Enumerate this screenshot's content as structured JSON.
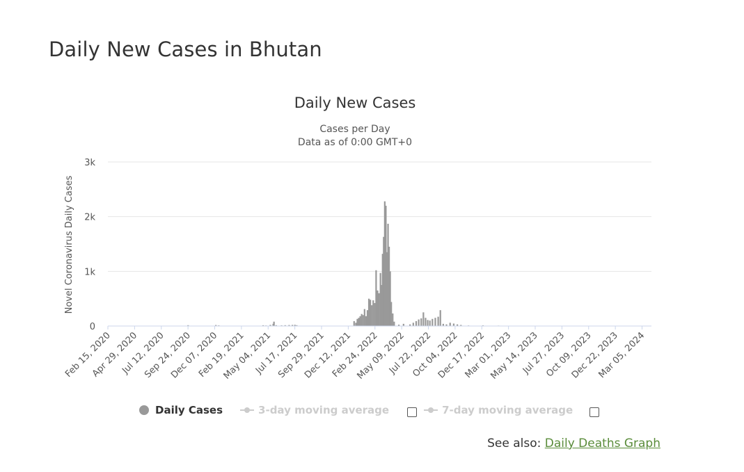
{
  "page": {
    "title": "Daily New Cases in Bhutan",
    "see_also_prefix": "See also: ",
    "see_also_link": "Daily Deaths Graph"
  },
  "colors": {
    "bar": "#999999",
    "grid": "#e6e6e6",
    "axis": "#ccd6eb",
    "link": "#5a8c3a",
    "legend_inactive": "#cccccc"
  },
  "chart_data": {
    "type": "bar",
    "title": "Daily New Cases",
    "subtitle_lines": [
      "Cases per Day",
      "Data as of 0:00 GMT+0"
    ],
    "ylabel": "Novel Coronavirus Daily Cases",
    "ylim": [
      0,
      3000
    ],
    "y_ticks": [
      {
        "value": 0,
        "label": "0"
      },
      {
        "value": 1000,
        "label": "1k"
      },
      {
        "value": 2000,
        "label": "2k"
      },
      {
        "value": 3000,
        "label": "3k"
      }
    ],
    "x_range": [
      "2020-02-15",
      "2024-03-31"
    ],
    "x_ticks": [
      "Feb 15, 2020",
      "Apr 29, 2020",
      "Jul 12, 2020",
      "Sep 24, 2020",
      "Dec 07, 2020",
      "Feb 19, 2021",
      "May 04, 2021",
      "Jul 17, 2021",
      "Sep 29, 2021",
      "Dec 12, 2021",
      "Feb 24, 2022",
      "May 09, 2022",
      "Jul 22, 2022",
      "Oct 04, 2022",
      "Dec 17, 2022",
      "Mar 01, 2023",
      "May 14, 2023",
      "Jul 27, 2023",
      "Oct 09, 2023",
      "Dec 22, 2023",
      "Mar 05, 2024"
    ],
    "series": [
      {
        "name": "Daily Cases",
        "points": [
          [
            "2020-09-24",
            15
          ],
          [
            "2020-12-10",
            18
          ],
          [
            "2020-12-18",
            12
          ],
          [
            "2021-04-20",
            14
          ],
          [
            "2021-04-28",
            10
          ],
          [
            "2021-05-10",
            20
          ],
          [
            "2021-05-18",
            40
          ],
          [
            "2021-05-20",
            80
          ],
          [
            "2021-05-26",
            15
          ],
          [
            "2021-06-10",
            12
          ],
          [
            "2021-06-20",
            15
          ],
          [
            "2021-07-01",
            18
          ],
          [
            "2021-07-10",
            20
          ],
          [
            "2021-07-17",
            22
          ],
          [
            "2021-07-22",
            15
          ],
          [
            "2021-12-28",
            90
          ],
          [
            "2022-01-02",
            60
          ],
          [
            "2022-01-06",
            130
          ],
          [
            "2022-01-10",
            150
          ],
          [
            "2022-01-14",
            180
          ],
          [
            "2022-01-18",
            220
          ],
          [
            "2022-01-22",
            200
          ],
          [
            "2022-01-26",
            310
          ],
          [
            "2022-01-30",
            180
          ],
          [
            "2022-02-03",
            290
          ],
          [
            "2022-02-07",
            500
          ],
          [
            "2022-02-11",
            480
          ],
          [
            "2022-02-15",
            380
          ],
          [
            "2022-02-19",
            470
          ],
          [
            "2022-02-23",
            420
          ],
          [
            "2022-02-27",
            1020
          ],
          [
            "2022-03-03",
            650
          ],
          [
            "2022-03-07",
            600
          ],
          [
            "2022-03-11",
            970
          ],
          [
            "2022-03-14",
            750
          ],
          [
            "2022-03-17",
            1320
          ],
          [
            "2022-03-20",
            1630
          ],
          [
            "2022-03-23",
            2280
          ],
          [
            "2022-03-26",
            2200
          ],
          [
            "2022-03-29",
            1350
          ],
          [
            "2022-04-01",
            1870
          ],
          [
            "2022-04-04",
            1450
          ],
          [
            "2022-04-07",
            1000
          ],
          [
            "2022-04-10",
            440
          ],
          [
            "2022-04-14",
            230
          ],
          [
            "2022-04-18",
            80
          ],
          [
            "2022-05-01",
            25
          ],
          [
            "2022-05-14",
            40
          ],
          [
            "2022-06-01",
            30
          ],
          [
            "2022-06-10",
            60
          ],
          [
            "2022-06-18",
            90
          ],
          [
            "2022-06-25",
            120
          ],
          [
            "2022-07-02",
            140
          ],
          [
            "2022-07-08",
            250
          ],
          [
            "2022-07-14",
            150
          ],
          [
            "2022-07-20",
            110
          ],
          [
            "2022-07-26",
            100
          ],
          [
            "2022-08-02",
            130
          ],
          [
            "2022-08-10",
            150
          ],
          [
            "2022-08-18",
            170
          ],
          [
            "2022-08-24",
            290
          ],
          [
            "2022-09-01",
            40
          ],
          [
            "2022-09-10",
            30
          ],
          [
            "2022-09-20",
            60
          ],
          [
            "2022-09-30",
            45
          ],
          [
            "2022-10-10",
            30
          ],
          [
            "2022-10-20",
            20
          ],
          [
            "2022-11-10",
            10
          ],
          [
            "2022-12-20",
            12
          ],
          [
            "2023-02-01",
            8
          ]
        ]
      }
    ]
  },
  "legend": {
    "items": [
      {
        "label": "Daily Cases"
      },
      {
        "label": "3-day moving average"
      },
      {
        "label": "7-day moving average"
      }
    ]
  }
}
